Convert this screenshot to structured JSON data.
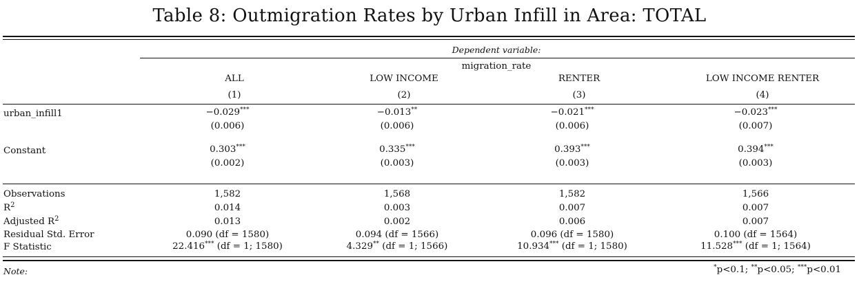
{
  "title": "Table 8: Outmigration Rates by Urban Infill in Area: TOTAL",
  "dependent_variable_label": "Dependent variable:",
  "dependent_variable": "migration_rate",
  "columns": [
    {
      "name": "ALL",
      "num": "(1)"
    },
    {
      "name": "LOW INCOME",
      "num": "(2)"
    },
    {
      "name": "RENTER",
      "num": "(3)"
    },
    {
      "name": "LOW INCOME RENTER",
      "num": "(4)"
    }
  ],
  "coefficients": [
    {
      "label": "urban_infill1",
      "est": [
        {
          "v": "−0.029",
          "s": "***"
        },
        {
          "v": "−0.013",
          "s": "**"
        },
        {
          "v": "−0.021",
          "s": "***"
        },
        {
          "v": "−0.023",
          "s": "***"
        }
      ],
      "se": [
        "(0.006)",
        "(0.006)",
        "(0.006)",
        "(0.007)"
      ]
    },
    {
      "label": "Constant",
      "est": [
        {
          "v": "0.303",
          "s": "***"
        },
        {
          "v": "0.335",
          "s": "***"
        },
        {
          "v": "0.393",
          "s": "***"
        },
        {
          "v": "0.394",
          "s": "***"
        }
      ],
      "se": [
        "(0.002)",
        "(0.003)",
        "(0.003)",
        "(0.003)"
      ]
    }
  ],
  "stats": {
    "observations": {
      "label": "Observations",
      "values": [
        "1,582",
        "1,568",
        "1,582",
        "1,566"
      ]
    },
    "r2": {
      "label_main": "R",
      "label_sup": "2",
      "values": [
        "0.014",
        "0.003",
        "0.007",
        "0.007"
      ]
    },
    "adj_r2": {
      "label_main": "Adjusted R",
      "label_sup": "2",
      "values": [
        "0.013",
        "0.002",
        "0.006",
        "0.007"
      ]
    },
    "rse": {
      "label": "Residual Std. Error",
      "values": [
        "0.090 (df = 1580)",
        "0.094 (df = 1566)",
        "0.096 (df = 1580)",
        "0.100 (df = 1564)"
      ]
    },
    "f": {
      "label": "F Statistic",
      "values": [
        {
          "v": "22.416",
          "s": "***",
          "rest": " (df = 1; 1580)"
        },
        {
          "v": "4.329",
          "s": "**",
          "rest": " (df = 1; 1566)"
        },
        {
          "v": "10.934",
          "s": "***",
          "rest": " (df = 1; 1580)"
        },
        {
          "v": "11.528",
          "s": "***",
          "rest": " (df = 1; 1564)"
        }
      ]
    }
  },
  "note": {
    "label": "Note:",
    "levels": [
      {
        "s": "*",
        "t": "p<0.1;"
      },
      {
        "s": "**",
        "t": "p<0.05;"
      },
      {
        "s": "***",
        "t": "p<0.01"
      }
    ]
  }
}
